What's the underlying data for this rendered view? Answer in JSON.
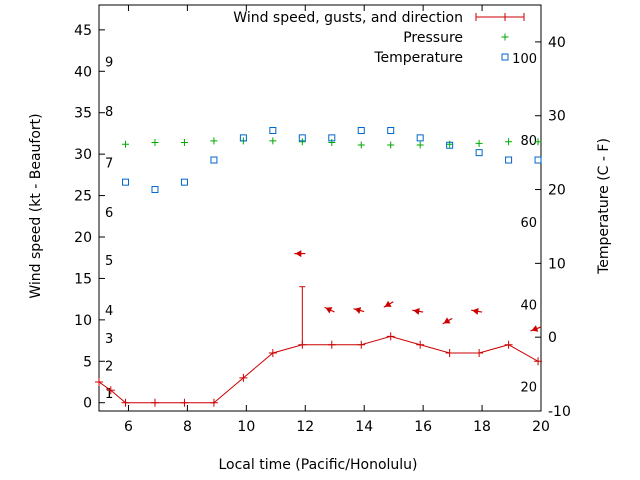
{
  "chart_data": {
    "type": "line",
    "title": "",
    "xlabel": "Local time (Pacific/Honolulu)",
    "ylabel": "Wind speed (kt - Beaufort)",
    "y2label": "Temperature (C - F)",
    "xlim": [
      5,
      20
    ],
    "ylim": [
      -1,
      48
    ],
    "y2lim": [
      -10,
      45
    ],
    "x_ticks": [
      6,
      8,
      10,
      12,
      14,
      16,
      18,
      20
    ],
    "y_ticks": [
      0,
      5,
      10,
      15,
      20,
      25,
      30,
      35,
      40,
      45
    ],
    "y2_ticks": [
      -10,
      0,
      10,
      20,
      30,
      40
    ],
    "beaufort_labels": [
      {
        "label": "1",
        "y": 1.2
      },
      {
        "label": "2",
        "y": 4.5
      },
      {
        "label": "3",
        "y": 7.8
      },
      {
        "label": "4",
        "y": 11.2
      },
      {
        "label": "5",
        "y": 17.2
      },
      {
        "label": "6",
        "y": 23.0
      },
      {
        "label": "7",
        "y": 29.0
      },
      {
        "label": "8",
        "y": 35.2
      },
      {
        "label": "9",
        "y": 41.2
      }
    ],
    "fahrenheit_labels": [
      {
        "label": "20",
        "y2": -6.7
      },
      {
        "label": "40",
        "y2": 4.4
      },
      {
        "label": "60",
        "y2": 15.6
      },
      {
        "label": "80",
        "y2": 26.7
      },
      {
        "label": "100",
        "y2": 37.8
      }
    ],
    "legend": {
      "position": "top-right",
      "entries": [
        "Wind speed, gusts, and direction",
        "Pressure",
        "Temperature"
      ]
    },
    "series": [
      {
        "name": "Wind speed, gusts, and direction",
        "color": "#cc0000",
        "x": [
          5,
          5.4,
          5.9,
          6.9,
          7.9,
          8.9,
          9.9,
          10.9,
          11.9,
          12.9,
          13.9,
          14.9,
          15.9,
          16.9,
          17.9,
          18.9,
          19.9
        ],
        "values": [
          2.5,
          1.5,
          0,
          0,
          0,
          0,
          3,
          6,
          7,
          7,
          7,
          8,
          7,
          6,
          6,
          7,
          5
        ],
        "gusts": [
          {
            "x": 11.9,
            "value": 14
          }
        ],
        "direction_arrows": [
          {
            "x": 11.9,
            "y": 18.0,
            "angle": 180
          },
          {
            "x": 12.9,
            "y": 11.1,
            "angle": 205
          },
          {
            "x": 13.9,
            "y": 11.1,
            "angle": 195
          },
          {
            "x": 14.9,
            "y": 12.0,
            "angle": 150
          },
          {
            "x": 15.9,
            "y": 11.0,
            "angle": 190
          },
          {
            "x": 16.9,
            "y": 10.0,
            "angle": 150
          },
          {
            "x": 17.9,
            "y": 11.0,
            "angle": 190
          },
          {
            "x": 19.9,
            "y": 9.0,
            "angle": 160
          }
        ]
      },
      {
        "name": "Pressure",
        "color": "#00aa00",
        "x": [
          5.9,
          6.9,
          7.9,
          8.9,
          9.9,
          10.9,
          11.9,
          12.9,
          13.9,
          14.9,
          15.9,
          16.9,
          17.9,
          18.9,
          19.9
        ],
        "values": [
          31.2,
          31.4,
          31.4,
          31.6,
          31.6,
          31.6,
          31.5,
          31.4,
          31.1,
          31.1,
          31.1,
          31.2,
          31.3,
          31.5,
          31.5
        ]
      },
      {
        "name": "Temperature",
        "color": "#0066cc",
        "axis": "y2",
        "x": [
          5.9,
          6.9,
          7.9,
          8.9,
          9.9,
          10.9,
          11.9,
          12.9,
          13.9,
          14.9,
          15.9,
          16.9,
          17.9,
          18.9,
          19.9
        ],
        "values": [
          21.0,
          20.0,
          21.0,
          24.0,
          27.0,
          28.0,
          27.0,
          27.0,
          28.0,
          28.0,
          27.0,
          26.0,
          25.0,
          24.0,
          24.0
        ]
      }
    ]
  }
}
